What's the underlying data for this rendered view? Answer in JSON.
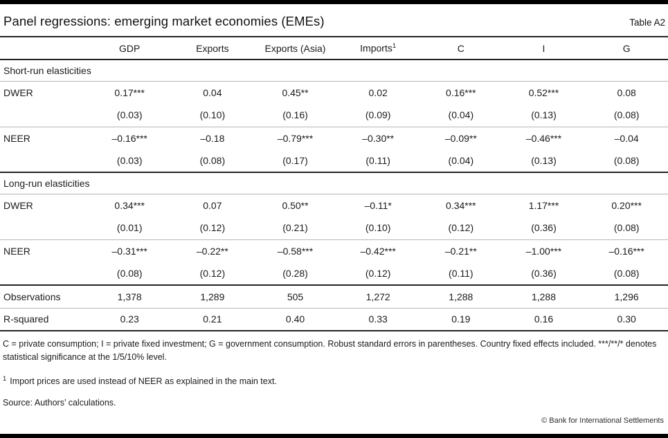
{
  "header": {
    "title": "Panel regressions: emerging market economies (EMEs)",
    "table_label": "Table A2"
  },
  "table": {
    "columns": [
      {
        "label": "GDP"
      },
      {
        "label": "Exports"
      },
      {
        "label": "Exports (Asia)"
      },
      {
        "label": "Imports",
        "sup": "1"
      },
      {
        "label": "C"
      },
      {
        "label": "I"
      },
      {
        "label": "G"
      }
    ],
    "sections": [
      {
        "label": "Short-run elasticities",
        "rows": [
          {
            "label": "DWER",
            "values": [
              "0.17***",
              "0.04",
              "0.45**",
              "0.02",
              "0.16***",
              "0.52***",
              "0.08"
            ],
            "se": [
              "(0.03)",
              "(0.10)",
              "(0.16)",
              "(0.09)",
              "(0.04)",
              "(0.13)",
              "(0.08)"
            ]
          },
          {
            "label": "NEER",
            "values": [
              "–0.16***",
              "–0.18",
              "–0.79***",
              "–0.30**",
              "–0.09**",
              "–0.46***",
              "–0.04"
            ],
            "se": [
              "(0.03)",
              "(0.08)",
              "(0.17)",
              "(0.11)",
              "(0.04)",
              "(0.13)",
              "(0.08)"
            ]
          }
        ]
      },
      {
        "label": "Long-run elasticities",
        "rows": [
          {
            "label": "DWER",
            "values": [
              "0.34***",
              "0.07",
              "0.50**",
              "–0.11*",
              "0.34***",
              "1.17***",
              "0.20***"
            ],
            "se": [
              "(0.01)",
              "(0.12)",
              "(0.21)",
              "(0.10)",
              "(0.12)",
              "(0.36)",
              "(0.08)"
            ]
          },
          {
            "label": "NEER",
            "values": [
              "–0.31***",
              "–0.22**",
              "–0.58***",
              "–0.42***",
              "–0.21**",
              "–1.00***",
              "–0.16***"
            ],
            "se": [
              "(0.08)",
              "(0.12)",
              "(0.28)",
              "(0.12)",
              "(0.11)",
              "(0.36)",
              "(0.08)"
            ]
          }
        ]
      }
    ],
    "summary_rows": [
      {
        "label": "Observations",
        "values": [
          "1,378",
          "1,289",
          "505",
          "1,272",
          "1,288",
          "1,288",
          "1,296"
        ]
      },
      {
        "label": "R-squared",
        "values": [
          "0.23",
          "0.21",
          "0.40",
          "0.33",
          "0.19",
          "0.16",
          "0.30"
        ]
      }
    ]
  },
  "notes": {
    "general": "C = private consumption; I = private fixed investment; G = government consumption. Robust standard errors in parentheses. Country fixed effects included. ***/**/* denotes statistical significance at the 1/5/10% level.",
    "footnote_1_marker": "1",
    "footnote_1": "Import prices are used instead of NEER as explained in the main text.",
    "source": "Source: Authors’ calculations.",
    "copyright": "© Bank for International Settlements"
  }
}
